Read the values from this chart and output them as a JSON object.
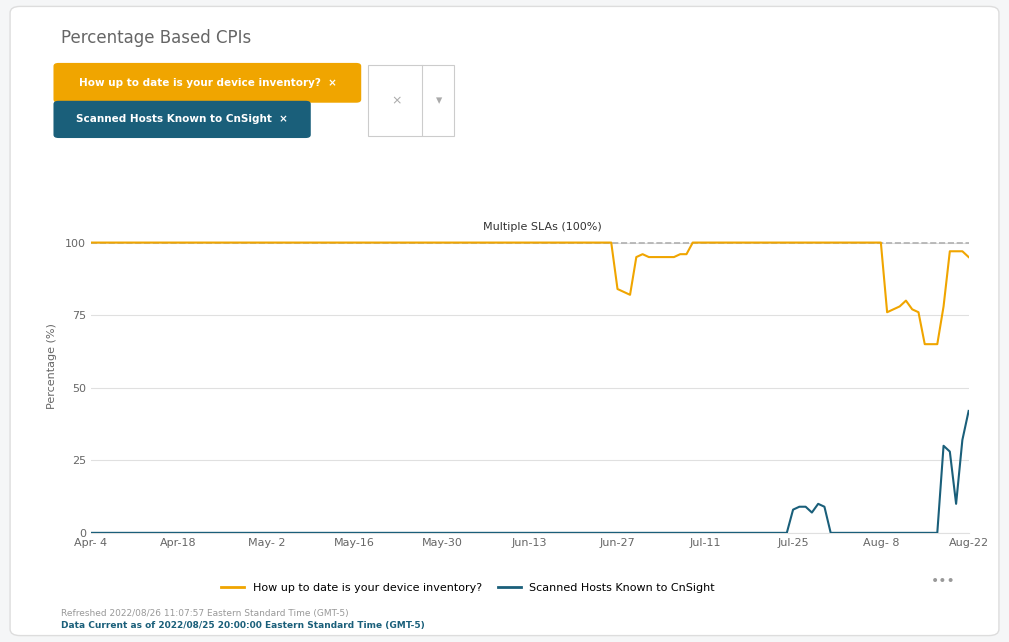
{
  "title": "Percentage Based CPIs",
  "ylabel": "Percentage (%)",
  "sla_label": "Multiple SLAs (100%)",
  "sla_value": 100,
  "background_color": "#f5f6f7",
  "plot_background": "#ffffff",
  "grid_color": "#e0e0e0",
  "yellow_color": "#f0a500",
  "blue_color": "#1a5f7a",
  "sla_color": "#b0b0b0",
  "footer_text1": "Refreshed 2022/08/26 11:07:57 Eastern Standard Time (GMT-5)",
  "footer_text2": "Data Current as of 2022/08/25 20:00:00 Eastern Standard Time (GMT-5)",
  "legend_yellow": "How up to date is your device inventory?",
  "legend_blue": "Scanned Hosts Known to CnSight",
  "badge_yellow_text": "How up to date is your device inventory?  ×",
  "badge_blue_text": "Scanned Hosts Known to CnSight  ×",
  "xtick_labels": [
    "Apr- 4",
    "Apr-18",
    "May- 2",
    "May-16",
    "May-30",
    "Jun-13",
    "Jun-27",
    "Jul-11",
    "Jul-25",
    "Aug- 8",
    "Aug-22"
  ],
  "xtick_positions": [
    0,
    14,
    28,
    42,
    56,
    70,
    84,
    98,
    112,
    126,
    140
  ],
  "ylim": [
    0,
    115
  ],
  "ytick_positions": [
    0,
    25,
    50,
    75,
    100
  ],
  "yellow_x": [
    0,
    1,
    2,
    3,
    4,
    5,
    6,
    7,
    8,
    9,
    10,
    11,
    12,
    13,
    14,
    15,
    16,
    17,
    18,
    19,
    20,
    21,
    22,
    23,
    24,
    25,
    26,
    27,
    28,
    29,
    30,
    31,
    32,
    33,
    34,
    35,
    36,
    37,
    38,
    39,
    40,
    41,
    42,
    43,
    44,
    45,
    46,
    47,
    48,
    49,
    50,
    51,
    52,
    53,
    54,
    55,
    56,
    57,
    58,
    59,
    60,
    61,
    62,
    63,
    64,
    65,
    66,
    67,
    68,
    69,
    70,
    71,
    72,
    73,
    74,
    75,
    76,
    77,
    78,
    79,
    80,
    81,
    82,
    83,
    84,
    85,
    86,
    87,
    88,
    89,
    90,
    91,
    92,
    93,
    94,
    95,
    96,
    97,
    98,
    99,
    100,
    101,
    102,
    103,
    104,
    105,
    106,
    107,
    108,
    109,
    110,
    111,
    112,
    113,
    114,
    115,
    116,
    117,
    118,
    119,
    120,
    121,
    122,
    123,
    124,
    125,
    126,
    127,
    128,
    129,
    130,
    131,
    132,
    133,
    134,
    135,
    136,
    137,
    138,
    139,
    140
  ],
  "yellow_y": [
    100,
    100,
    100,
    100,
    100,
    100,
    100,
    100,
    100,
    100,
    100,
    100,
    100,
    100,
    100,
    100,
    100,
    100,
    100,
    100,
    100,
    100,
    100,
    100,
    100,
    100,
    100,
    100,
    100,
    100,
    100,
    100,
    100,
    100,
    100,
    100,
    100,
    100,
    100,
    100,
    100,
    100,
    100,
    100,
    100,
    100,
    100,
    100,
    100,
    100,
    100,
    100,
    100,
    100,
    100,
    100,
    100,
    100,
    100,
    100,
    100,
    100,
    100,
    100,
    100,
    100,
    100,
    100,
    100,
    100,
    100,
    100,
    100,
    100,
    100,
    100,
    100,
    100,
    100,
    100,
    100,
    100,
    100,
    100,
    84,
    83,
    82,
    95,
    96,
    95,
    95,
    95,
    95,
    95,
    96,
    96,
    100,
    100,
    100,
    100,
    100,
    100,
    100,
    100,
    100,
    100,
    100,
    100,
    100,
    100,
    100,
    100,
    100,
    100,
    100,
    100,
    100,
    100,
    100,
    100,
    100,
    100,
    100,
    100,
    100,
    100,
    100,
    76,
    77,
    78,
    80,
    77,
    76,
    65,
    65,
    65,
    78,
    97,
    97,
    97,
    95
  ],
  "blue_x": [
    0,
    1,
    2,
    3,
    4,
    5,
    6,
    7,
    8,
    9,
    10,
    11,
    12,
    13,
    14,
    15,
    16,
    17,
    18,
    19,
    20,
    21,
    22,
    23,
    24,
    25,
    26,
    27,
    28,
    29,
    30,
    31,
    32,
    33,
    34,
    35,
    36,
    37,
    38,
    39,
    40,
    41,
    42,
    43,
    44,
    45,
    46,
    47,
    48,
    49,
    50,
    51,
    52,
    53,
    54,
    55,
    56,
    57,
    58,
    59,
    60,
    61,
    62,
    63,
    64,
    65,
    66,
    67,
    68,
    69,
    70,
    71,
    72,
    73,
    74,
    75,
    76,
    77,
    78,
    79,
    80,
    81,
    82,
    83,
    84,
    85,
    86,
    87,
    88,
    89,
    90,
    91,
    92,
    93,
    94,
    95,
    96,
    97,
    98,
    99,
    100,
    101,
    102,
    103,
    104,
    105,
    106,
    107,
    108,
    109,
    110,
    111,
    112,
    113,
    114,
    115,
    116,
    117,
    118,
    119,
    120,
    121,
    122,
    123,
    124,
    125,
    126,
    127,
    128,
    129,
    130,
    131,
    132,
    133,
    134,
    135,
    136,
    137,
    138,
    139,
    140
  ],
  "blue_y": [
    0,
    0,
    0,
    0,
    0,
    0,
    0,
    0,
    0,
    0,
    0,
    0,
    0,
    0,
    0,
    0,
    0,
    0,
    0,
    0,
    0,
    0,
    0,
    0,
    0,
    0,
    0,
    0,
    0,
    0,
    0,
    0,
    0,
    0,
    0,
    0,
    0,
    0,
    0,
    0,
    0,
    0,
    0,
    0,
    0,
    0,
    0,
    0,
    0,
    0,
    0,
    0,
    0,
    0,
    0,
    0,
    0,
    0,
    0,
    0,
    0,
    0,
    0,
    0,
    0,
    0,
    0,
    0,
    0,
    0,
    0,
    0,
    0,
    0,
    0,
    0,
    0,
    0,
    0,
    0,
    0,
    0,
    0,
    0,
    0,
    0,
    0,
    0,
    0,
    0,
    0,
    0,
    0,
    0,
    0,
    0,
    0,
    0,
    0,
    0,
    0,
    0,
    0,
    0,
    0,
    0,
    0,
    0,
    0,
    0,
    0,
    0,
    8,
    9,
    9,
    7,
    10,
    9,
    0,
    0,
    0,
    0,
    0,
    0,
    0,
    0,
    0,
    0,
    0,
    0,
    0,
    0,
    0,
    0,
    0,
    0,
    30,
    28,
    10,
    32,
    42
  ]
}
